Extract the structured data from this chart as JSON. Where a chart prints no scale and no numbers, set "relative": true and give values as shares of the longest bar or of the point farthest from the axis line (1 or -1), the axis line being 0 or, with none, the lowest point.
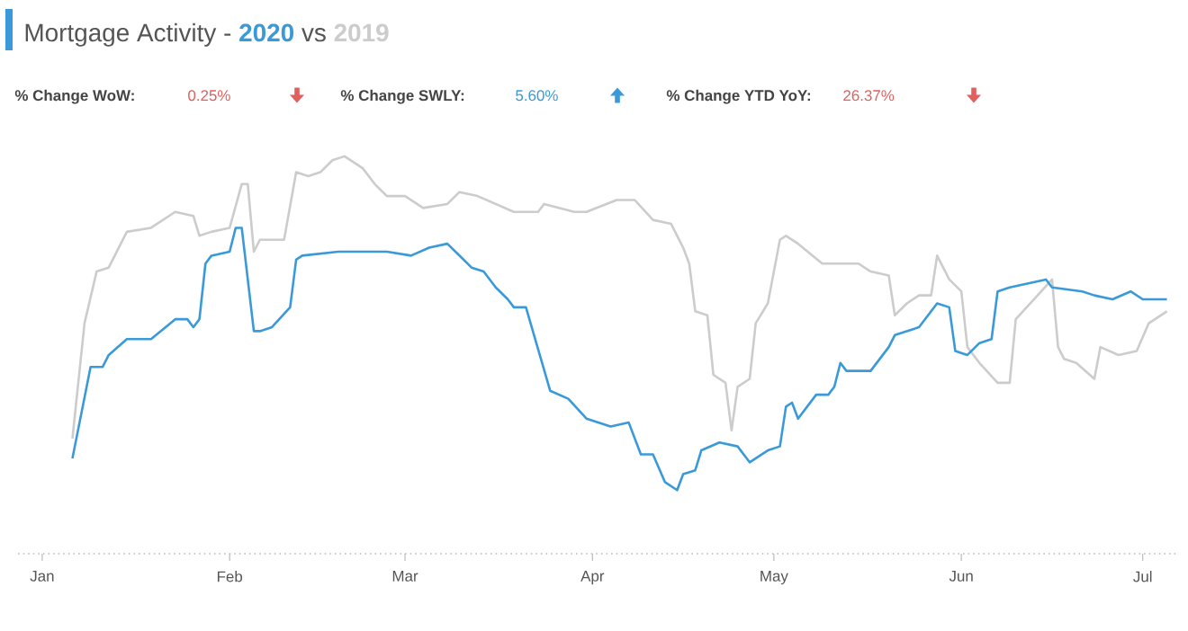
{
  "chart_data": {
    "type": "line",
    "title": "Mortgage Activity -",
    "relative": true,
    "annotations": [
      "vs",
      "% Change WoW:",
      "0.25%",
      "% Change SWLY:",
      "5.60%",
      "% Change YTD YoY:",
      "26.37%"
    ],
    "xlim": [
      "2019-12-28",
      "2020-07-07"
    ],
    "xticks": [
      {
        "value": "2020-01-01",
        "label": "Jan"
      },
      {
        "value": "2020-02-01",
        "label": "Feb"
      },
      {
        "value": "2020-03-01",
        "label": "Mar"
      },
      {
        "value": "2020-04-01",
        "label": "Apr"
      },
      {
        "value": "2020-05-01",
        "label": "May"
      },
      {
        "value": "2020-06-01",
        "label": "Jun"
      },
      {
        "value": "2020-07-01",
        "label": "Jul"
      }
    ],
    "series": [
      {
        "name": "2020",
        "color": "#3a9ad9",
        "x": [
          "2020-01-06",
          "2020-01-09",
          "2020-01-11",
          "2020-01-12",
          "2020-01-15",
          "2020-01-19",
          "2020-01-23",
          "2020-01-25",
          "2020-01-26",
          "2020-01-27",
          "2020-01-28",
          "2020-01-29",
          "2020-02-01",
          "2020-02-02",
          "2020-02-03",
          "2020-02-05",
          "2020-02-06",
          "2020-02-08",
          "2020-02-11",
          "2020-02-12",
          "2020-02-13",
          "2020-02-19",
          "2020-02-26",
          "2020-02-27",
          "2020-03-02",
          "2020-03-05",
          "2020-03-08",
          "2020-03-12",
          "2020-03-14",
          "2020-03-16",
          "2020-03-18",
          "2020-03-19",
          "2020-03-21",
          "2020-03-25",
          "2020-03-28",
          "2020-03-31",
          "2020-04-04",
          "2020-04-07",
          "2020-04-09",
          "2020-04-11",
          "2020-04-13",
          "2020-04-15",
          "2020-04-16",
          "2020-04-18",
          "2020-04-19",
          "2020-04-22",
          "2020-04-25",
          "2020-04-27",
          "2020-04-30",
          "2020-05-02",
          "2020-05-03",
          "2020-05-04",
          "2020-05-05",
          "2020-05-08",
          "2020-05-10",
          "2020-05-11",
          "2020-05-12",
          "2020-05-13",
          "2020-05-17",
          "2020-05-20",
          "2020-05-21",
          "2020-05-25",
          "2020-05-28",
          "2020-05-30",
          "2020-05-31",
          "2020-06-02",
          "2020-06-04",
          "2020-06-06",
          "2020-06-07",
          "2020-06-09",
          "2020-06-15",
          "2020-06-16",
          "2020-06-21",
          "2020-06-23",
          "2020-06-26",
          "2020-06-29",
          "2020-07-01",
          "2020-07-05"
        ],
        "values": [
          0.24,
          0.47,
          0.47,
          0.5,
          0.54,
          0.54,
          0.59,
          0.59,
          0.57,
          0.59,
          0.73,
          0.75,
          0.76,
          0.82,
          0.82,
          0.56,
          0.56,
          0.57,
          0.62,
          0.74,
          0.75,
          0.76,
          0.76,
          0.76,
          0.75,
          0.77,
          0.78,
          0.72,
          0.71,
          0.67,
          0.64,
          0.62,
          0.62,
          0.41,
          0.39,
          0.34,
          0.32,
          0.33,
          0.25,
          0.25,
          0.18,
          0.16,
          0.2,
          0.21,
          0.26,
          0.28,
          0.27,
          0.23,
          0.26,
          0.27,
          0.37,
          0.38,
          0.34,
          0.4,
          0.4,
          0.42,
          0.48,
          0.46,
          0.46,
          0.52,
          0.55,
          0.57,
          0.63,
          0.62,
          0.51,
          0.5,
          0.53,
          0.54,
          0.66,
          0.67,
          0.69,
          0.67,
          0.66,
          0.65,
          0.64,
          0.66,
          0.64,
          0.64
        ]
      },
      {
        "name": "2019",
        "color": "#cccccc",
        "x": [
          "2020-01-06",
          "2020-01-08",
          "2020-01-10",
          "2020-01-12",
          "2020-01-15",
          "2020-01-19",
          "2020-01-23",
          "2020-01-26",
          "2020-01-27",
          "2020-01-29",
          "2020-02-01",
          "2020-02-03",
          "2020-02-04",
          "2020-02-05",
          "2020-02-06",
          "2020-02-10",
          "2020-02-12",
          "2020-02-14",
          "2020-02-16",
          "2020-02-18",
          "2020-02-20",
          "2020-02-23",
          "2020-02-25",
          "2020-02-27",
          "2020-03-01",
          "2020-03-04",
          "2020-03-08",
          "2020-03-10",
          "2020-03-13",
          "2020-03-16",
          "2020-03-19",
          "2020-03-23",
          "2020-03-24",
          "2020-03-29",
          "2020-03-31",
          "2020-04-05",
          "2020-04-08",
          "2020-04-11",
          "2020-04-14",
          "2020-04-16",
          "2020-04-17",
          "2020-04-18",
          "2020-04-20",
          "2020-04-21",
          "2020-04-23",
          "2020-04-24",
          "2020-04-25",
          "2020-04-27",
          "2020-04-28",
          "2020-04-30",
          "2020-05-02",
          "2020-05-03",
          "2020-05-05",
          "2020-05-09",
          "2020-05-12",
          "2020-05-15",
          "2020-05-17",
          "2020-05-20",
          "2020-05-21",
          "2020-05-23",
          "2020-05-25",
          "2020-05-27",
          "2020-05-28",
          "2020-05-30",
          "2020-06-01",
          "2020-06-02",
          "2020-06-04",
          "2020-06-07",
          "2020-06-09",
          "2020-06-10",
          "2020-06-13",
          "2020-06-16",
          "2020-06-17",
          "2020-06-18",
          "2020-06-20",
          "2020-06-23",
          "2020-06-24",
          "2020-06-27",
          "2020-06-30",
          "2020-07-02",
          "2020-07-05"
        ],
        "values": [
          0.29,
          0.58,
          0.71,
          0.72,
          0.81,
          0.82,
          0.86,
          0.85,
          0.8,
          0.81,
          0.82,
          0.93,
          0.93,
          0.76,
          0.79,
          0.79,
          0.96,
          0.95,
          0.96,
          0.99,
          1,
          0.97,
          0.93,
          0.9,
          0.9,
          0.87,
          0.88,
          0.91,
          0.9,
          0.88,
          0.86,
          0.86,
          0.88,
          0.86,
          0.86,
          0.89,
          0.89,
          0.84,
          0.83,
          0.77,
          0.73,
          0.61,
          0.6,
          0.45,
          0.43,
          0.31,
          0.42,
          0.44,
          0.58,
          0.63,
          0.79,
          0.8,
          0.78,
          0.73,
          0.73,
          0.73,
          0.71,
          0.7,
          0.6,
          0.63,
          0.65,
          0.65,
          0.75,
          0.69,
          0.66,
          0.52,
          0.48,
          0.43,
          0.43,
          0.59,
          0.64,
          0.69,
          0.52,
          0.49,
          0.48,
          0.44,
          0.52,
          0.5,
          0.51,
          0.58,
          0.61
        ]
      }
    ]
  }
}
